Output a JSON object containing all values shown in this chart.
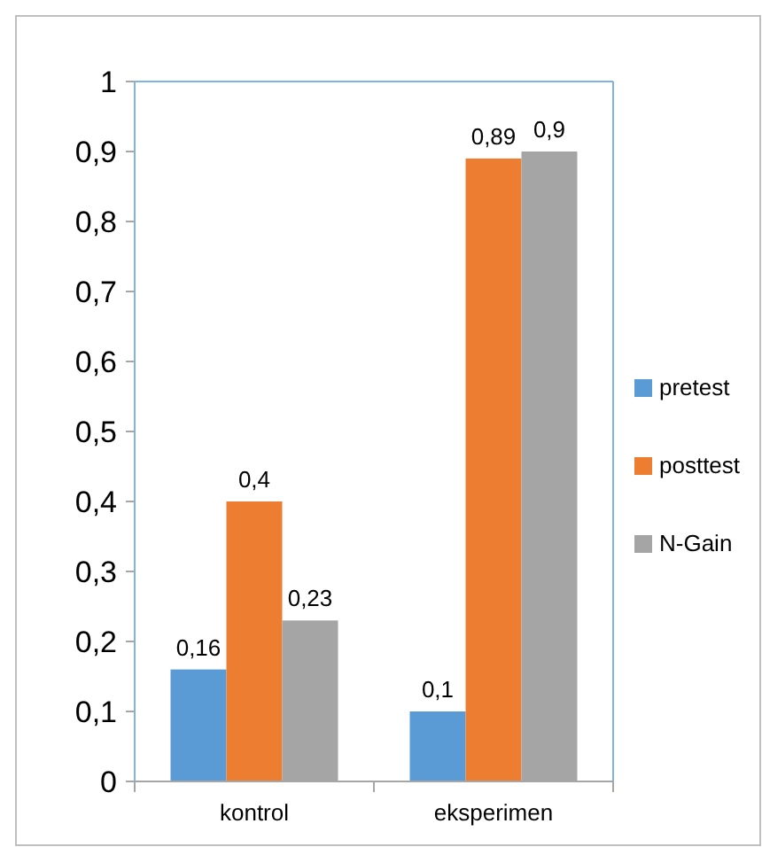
{
  "chart_data": {
    "type": "bar",
    "categories": [
      "kontrol",
      "eksperimen"
    ],
    "series": [
      {
        "name": "pretest",
        "color": "#5b9bd5",
        "values": [
          0.16,
          0.1
        ],
        "value_labels": [
          "0,16",
          "0,1"
        ]
      },
      {
        "name": "posttest",
        "color": "#ed7d31",
        "values": [
          0.4,
          0.89
        ],
        "value_labels": [
          "0,4",
          "0,89"
        ]
      },
      {
        "name": "N-Gain",
        "color": "#a5a5a5",
        "values": [
          0.23,
          0.9
        ],
        "value_labels": [
          "0,23",
          "0,9"
        ]
      }
    ],
    "ylim": [
      0,
      1
    ],
    "yticks": [
      {
        "value": 0,
        "label": "0"
      },
      {
        "value": 0.1,
        "label": "0,1"
      },
      {
        "value": 0.2,
        "label": "0,2"
      },
      {
        "value": 0.3,
        "label": "0,3"
      },
      {
        "value": 0.4,
        "label": "0,4"
      },
      {
        "value": 0.5,
        "label": "0,5"
      },
      {
        "value": 0.6,
        "label": "0,6"
      },
      {
        "value": 0.7,
        "label": "0,7"
      },
      {
        "value": 0.8,
        "label": "0,8"
      },
      {
        "value": 0.9,
        "label": "0,9"
      },
      {
        "value": 1,
        "label": "1"
      }
    ],
    "grid": false,
    "legend": "right"
  }
}
